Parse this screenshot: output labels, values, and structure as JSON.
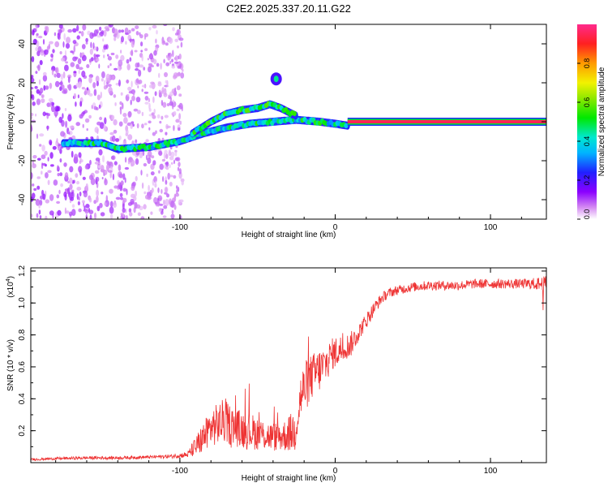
{
  "title": "C2E2.2025.337.20.11.G22",
  "chart_data": [
    {
      "type": "heatmap",
      "name": "spectrogram",
      "xlabel": "Height of straight line (km)",
      "ylabel": "Frequency (Hz)",
      "xlim": [
        -196,
        136
      ],
      "ylim": [
        -50,
        50
      ],
      "xticks": [
        -100,
        0,
        100
      ],
      "xtick_labels": [
        "-100",
        "0",
        "100"
      ],
      "yticks": [
        -40,
        -20,
        0,
        20,
        40
      ],
      "ytick_labels": [
        "-40",
        "-20",
        "0",
        "20",
        "40"
      ],
      "colorbar": {
        "label": "Normalized spectral amplitude",
        "range": [
          0,
          1
        ],
        "ticks": [
          0,
          0.2,
          0.4,
          0.6,
          0.8
        ],
        "tick_labels": [
          "0.0",
          "0.2",
          "0.4",
          "0.6",
          "0.8"
        ]
      },
      "features": [
        {
          "name": "scatter-noise",
          "x_range": [
            -196,
            -98
          ],
          "freq_range": [
            -50,
            50
          ],
          "amplitude": 0.1
        },
        {
          "name": "lower-track",
          "points": [
            [
              -175,
              -11
            ],
            [
              -150,
              -11
            ],
            [
              -140,
              -14
            ],
            [
              -120,
              -13
            ],
            [
              -100,
              -10
            ],
            [
              -85,
              -6
            ],
            [
              -70,
              -3
            ],
            [
              -55,
              -1
            ],
            [
              -40,
              0
            ],
            [
              -25,
              1
            ],
            [
              -10,
              0
            ],
            [
              0,
              -1
            ],
            [
              8,
              -2
            ]
          ],
          "amplitude": 0.3
        },
        {
          "name": "upper-track",
          "points": [
            [
              -92,
              -6
            ],
            [
              -80,
              0
            ],
            [
              -70,
              4
            ],
            [
              -60,
              6
            ],
            [
              -50,
              7
            ],
            [
              -42,
              9
            ],
            [
              -35,
              7
            ],
            [
              -25,
              3
            ]
          ],
          "amplitude": 0.35
        },
        {
          "name": "blob",
          "x": -38,
          "freq": 22,
          "amplitude": 0.2
        },
        {
          "name": "carrier-line",
          "x_range": [
            8,
            136
          ],
          "freq": 0,
          "amplitude": 0.95
        }
      ]
    },
    {
      "type": "line",
      "name": "snr",
      "xlabel": "Height of straight line (km)",
      "ylabel": "SNR (10 * v/v)",
      "multiplier": "(x10",
      "multiplier_exp": "4",
      "xlim": [
        -196,
        136
      ],
      "ylim": [
        0,
        1.22
      ],
      "xticks": [
        -100,
        0,
        100
      ],
      "xtick_labels": [
        "-100",
        "0",
        "100"
      ],
      "yticks": [
        0.2,
        0.4,
        0.6,
        0.8,
        1.0,
        1.2
      ],
      "ytick_labels": [
        "0.2",
        "0.4",
        "0.6",
        "0.8",
        "1.0",
        "1.2"
      ],
      "color": "#ee3333",
      "series": [
        {
          "name": "SNR",
          "x": [
            -196,
            -180,
            -160,
            -140,
            -120,
            -105,
            -95,
            -88,
            -80,
            -72,
            -64,
            -56,
            -48,
            -40,
            -32,
            -26,
            -22,
            -18,
            -14,
            -10,
            -6,
            -2,
            2,
            6,
            10,
            14,
            18,
            22,
            26,
            30,
            34,
            40,
            50,
            60,
            70,
            80,
            90,
            100,
            110,
            120,
            130,
            136
          ],
          "value": [
            0.02,
            0.025,
            0.03,
            0.03,
            0.035,
            0.04,
            0.05,
            0.12,
            0.22,
            0.26,
            0.22,
            0.2,
            0.18,
            0.16,
            0.17,
            0.2,
            0.42,
            0.5,
            0.55,
            0.58,
            0.62,
            0.68,
            0.7,
            0.72,
            0.74,
            0.8,
            0.86,
            0.92,
            0.98,
            1.03,
            1.06,
            1.08,
            1.1,
            1.11,
            1.11,
            1.11,
            1.12,
            1.12,
            1.12,
            1.12,
            1.12,
            1.12
          ],
          "noise": [
            0.008,
            0.008,
            0.01,
            0.01,
            0.01,
            0.012,
            0.02,
            0.08,
            0.12,
            0.14,
            0.12,
            0.12,
            0.1,
            0.09,
            0.1,
            0.14,
            0.16,
            0.16,
            0.14,
            0.14,
            0.12,
            0.1,
            0.1,
            0.08,
            0.08,
            0.06,
            0.05,
            0.05,
            0.04,
            0.035,
            0.03,
            0.03,
            0.03,
            0.03,
            0.03,
            0.03,
            0.03,
            0.03,
            0.03,
            0.03,
            0.04,
            0.05
          ]
        }
      ]
    }
  ]
}
